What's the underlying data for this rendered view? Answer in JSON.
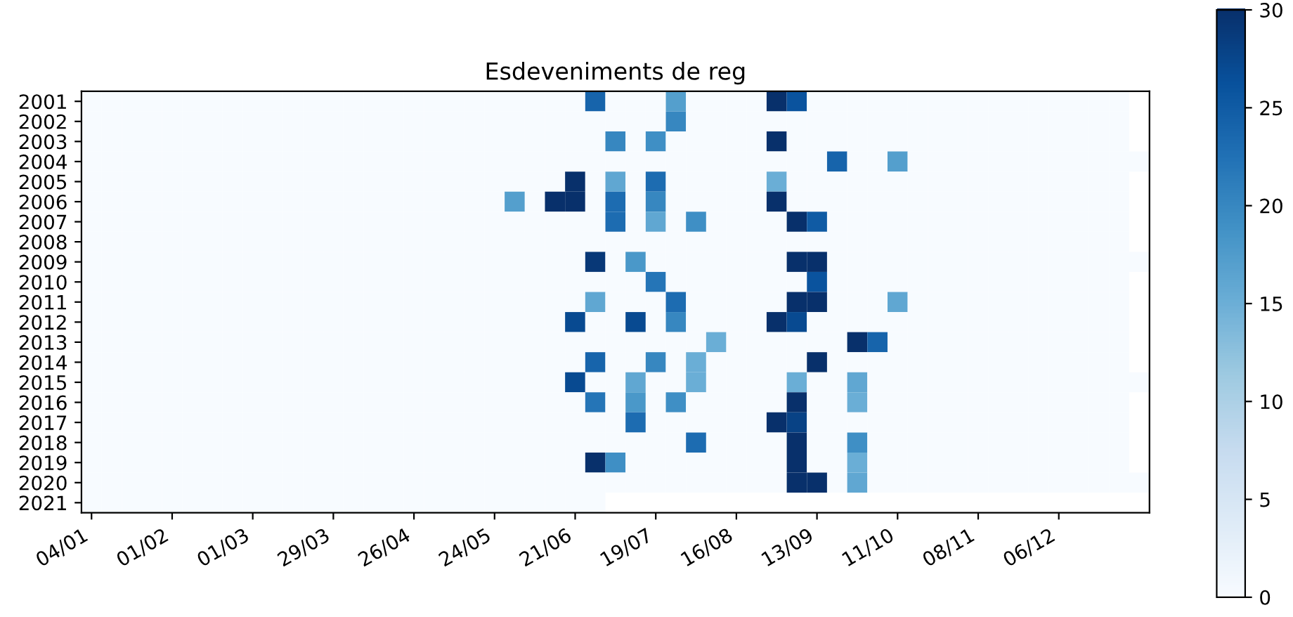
{
  "chart_data": {
    "type": "heatmap",
    "title": "Esdeveniments de reg",
    "categories": [
      "04/01",
      null,
      null,
      null,
      "01/02",
      null,
      null,
      null,
      "01/03",
      null,
      null,
      null,
      "29/03",
      null,
      null,
      null,
      "26/04",
      null,
      null,
      null,
      "24/05",
      null,
      null,
      null,
      "21/06",
      null,
      null,
      null,
      "19/07",
      null,
      null,
      null,
      "16/08",
      null,
      null,
      null,
      "13/09",
      null,
      null,
      null,
      "11/10",
      null,
      null,
      null,
      "08/11",
      null,
      null,
      null,
      "06/12",
      null,
      null,
      null,
      null
    ],
    "y_categories": [
      "2001",
      "2002",
      "2003",
      "2004",
      "2005",
      "2006",
      "2007",
      "2008",
      "2009",
      "2010",
      "2011",
      "2012",
      "2013",
      "2014",
      "2015",
      "2016",
      "2017",
      "2018",
      "2019",
      "2020",
      "2021"
    ],
    "cells": [
      [
        0,
        0,
        0,
        0,
        0,
        0,
        0,
        0,
        0,
        0,
        0,
        0,
        0,
        0,
        0,
        0,
        0,
        0,
        0,
        0,
        0,
        0,
        0,
        0,
        0,
        24,
        0,
        0,
        0,
        17,
        0,
        0,
        0,
        0,
        30,
        26,
        0,
        0,
        0,
        0,
        0,
        0,
        0,
        0,
        0,
        0,
        0,
        0,
        0,
        0,
        0,
        0,
        null
      ],
      [
        0,
        0,
        0,
        0,
        0,
        0,
        0,
        0,
        0,
        0,
        0,
        0,
        0,
        0,
        0,
        0,
        0,
        0,
        0,
        0,
        0,
        0,
        0,
        0,
        0,
        0,
        0,
        0,
        0,
        20,
        0,
        0,
        0,
        0,
        0,
        0,
        0,
        0,
        0,
        0,
        0,
        0,
        0,
        0,
        0,
        0,
        0,
        0,
        0,
        0,
        0,
        0,
        null
      ],
      [
        0,
        0,
        0,
        0,
        0,
        0,
        0,
        0,
        0,
        0,
        0,
        0,
        0,
        0,
        0,
        0,
        0,
        0,
        0,
        0,
        0,
        0,
        0,
        0,
        0,
        0,
        20,
        0,
        19,
        0,
        0,
        0,
        0,
        0,
        30,
        0,
        0,
        0,
        0,
        0,
        0,
        0,
        0,
        0,
        0,
        0,
        0,
        0,
        0,
        0,
        0,
        0,
        null
      ],
      [
        0,
        0,
        0,
        0,
        0,
        0,
        0,
        0,
        0,
        0,
        0,
        0,
        0,
        0,
        0,
        0,
        0,
        0,
        0,
        0,
        0,
        0,
        0,
        0,
        0,
        0,
        0,
        0,
        0,
        0,
        0,
        0,
        0,
        0,
        0,
        0,
        0,
        24,
        0,
        0,
        17,
        0,
        0,
        0,
        0,
        0,
        0,
        0,
        0,
        0,
        0,
        0,
        0
      ],
      [
        0,
        0,
        0,
        0,
        0,
        0,
        0,
        0,
        0,
        0,
        0,
        0,
        0,
        0,
        0,
        0,
        0,
        0,
        0,
        0,
        0,
        0,
        0,
        0,
        30,
        0,
        16,
        0,
        23,
        0,
        0,
        0,
        0,
        0,
        15,
        0,
        0,
        0,
        0,
        0,
        0,
        0,
        0,
        0,
        0,
        0,
        0,
        0,
        0,
        0,
        0,
        0,
        null
      ],
      [
        0,
        0,
        0,
        0,
        0,
        0,
        0,
        0,
        0,
        0,
        0,
        0,
        0,
        0,
        0,
        0,
        0,
        0,
        0,
        0,
        0,
        17,
        0,
        30,
        30,
        0,
        23,
        0,
        20,
        0,
        0,
        0,
        0,
        0,
        30,
        0,
        0,
        0,
        0,
        0,
        0,
        0,
        0,
        0,
        0,
        0,
        0,
        0,
        0,
        0,
        0,
        0,
        null
      ],
      [
        0,
        0,
        0,
        0,
        0,
        0,
        0,
        0,
        0,
        0,
        0,
        0,
        0,
        0,
        0,
        0,
        0,
        0,
        0,
        0,
        0,
        0,
        0,
        0,
        0,
        0,
        23,
        0,
        16,
        0,
        19,
        0,
        0,
        0,
        0,
        30,
        25,
        0,
        0,
        0,
        0,
        0,
        0,
        0,
        0,
        0,
        0,
        0,
        0,
        0,
        0,
        0,
        null
      ],
      [
        0,
        0,
        0,
        0,
        0,
        0,
        0,
        0,
        0,
        0,
        0,
        0,
        0,
        0,
        0,
        0,
        0,
        0,
        0,
        0,
        0,
        0,
        0,
        0,
        0,
        0,
        0,
        0,
        0,
        0,
        0,
        0,
        0,
        0,
        0,
        0,
        0,
        0,
        0,
        0,
        0,
        0,
        0,
        0,
        0,
        0,
        0,
        0,
        0,
        0,
        0,
        0,
        null
      ],
      [
        0,
        0,
        0,
        0,
        0,
        0,
        0,
        0,
        0,
        0,
        0,
        0,
        0,
        0,
        0,
        0,
        0,
        0,
        0,
        0,
        0,
        0,
        0,
        0,
        0,
        29,
        0,
        18,
        0,
        0,
        0,
        0,
        0,
        0,
        0,
        30,
        30,
        0,
        0,
        0,
        0,
        0,
        0,
        0,
        0,
        0,
        0,
        0,
        0,
        0,
        0,
        0,
        0
      ],
      [
        0,
        0,
        0,
        0,
        0,
        0,
        0,
        0,
        0,
        0,
        0,
        0,
        0,
        0,
        0,
        0,
        0,
        0,
        0,
        0,
        0,
        0,
        0,
        0,
        0,
        0,
        0,
        0,
        22,
        0,
        0,
        0,
        0,
        0,
        0,
        0,
        26,
        0,
        0,
        0,
        0,
        0,
        0,
        0,
        0,
        0,
        0,
        0,
        0,
        0,
        0,
        0,
        null
      ],
      [
        0,
        0,
        0,
        0,
        0,
        0,
        0,
        0,
        0,
        0,
        0,
        0,
        0,
        0,
        0,
        0,
        0,
        0,
        0,
        0,
        0,
        0,
        0,
        0,
        0,
        16,
        0,
        0,
        0,
        23,
        0,
        0,
        0,
        0,
        0,
        30,
        30,
        0,
        0,
        0,
        16,
        0,
        0,
        0,
        0,
        0,
        0,
        0,
        0,
        0,
        0,
        0,
        null
      ],
      [
        0,
        0,
        0,
        0,
        0,
        0,
        0,
        0,
        0,
        0,
        0,
        0,
        0,
        0,
        0,
        0,
        0,
        0,
        0,
        0,
        0,
        0,
        0,
        0,
        27,
        0,
        0,
        27,
        0,
        20,
        0,
        0,
        0,
        0,
        30,
        27,
        0,
        0,
        0,
        0,
        0,
        0,
        0,
        0,
        0,
        0,
        0,
        0,
        0,
        0,
        0,
        0,
        null
      ],
      [
        0,
        0,
        0,
        0,
        0,
        0,
        0,
        0,
        0,
        0,
        0,
        0,
        0,
        0,
        0,
        0,
        0,
        0,
        0,
        0,
        0,
        0,
        0,
        0,
        0,
        0,
        0,
        0,
        0,
        0,
        0,
        15,
        0,
        0,
        0,
        0,
        0,
        0,
        30,
        24,
        0,
        0,
        0,
        0,
        0,
        0,
        0,
        0,
        0,
        0,
        0,
        0,
        null
      ],
      [
        0,
        0,
        0,
        0,
        0,
        0,
        0,
        0,
        0,
        0,
        0,
        0,
        0,
        0,
        0,
        0,
        0,
        0,
        0,
        0,
        0,
        0,
        0,
        0,
        0,
        24,
        0,
        0,
        20,
        0,
        15,
        0,
        0,
        0,
        0,
        0,
        30,
        0,
        0,
        0,
        0,
        0,
        0,
        0,
        0,
        0,
        0,
        0,
        0,
        0,
        0,
        0,
        null
      ],
      [
        0,
        0,
        0,
        0,
        0,
        0,
        0,
        0,
        0,
        0,
        0,
        0,
        0,
        0,
        0,
        0,
        0,
        0,
        0,
        0,
        0,
        0,
        0,
        0,
        27,
        0,
        0,
        16,
        0,
        0,
        15,
        0,
        0,
        0,
        0,
        15,
        0,
        0,
        16,
        0,
        0,
        0,
        0,
        0,
        0,
        0,
        0,
        0,
        0,
        0,
        0,
        0,
        0
      ],
      [
        0,
        0,
        0,
        0,
        0,
        0,
        0,
        0,
        0,
        0,
        0,
        0,
        0,
        0,
        0,
        0,
        0,
        0,
        0,
        0,
        0,
        0,
        0,
        0,
        0,
        22,
        0,
        18,
        0,
        19,
        0,
        0,
        0,
        0,
        0,
        30,
        0,
        0,
        15,
        0,
        0,
        0,
        0,
        0,
        0,
        0,
        0,
        0,
        0,
        0,
        0,
        0,
        null
      ],
      [
        0,
        0,
        0,
        0,
        0,
        0,
        0,
        0,
        0,
        0,
        0,
        0,
        0,
        0,
        0,
        0,
        0,
        0,
        0,
        0,
        0,
        0,
        0,
        0,
        0,
        0,
        0,
        23,
        0,
        0,
        0,
        0,
        0,
        0,
        30,
        28,
        0,
        0,
        0,
        0,
        0,
        0,
        0,
        0,
        0,
        0,
        0,
        0,
        0,
        0,
        0,
        0,
        null
      ],
      [
        0,
        0,
        0,
        0,
        0,
        0,
        0,
        0,
        0,
        0,
        0,
        0,
        0,
        0,
        0,
        0,
        0,
        0,
        0,
        0,
        0,
        0,
        0,
        0,
        0,
        0,
        0,
        0,
        0,
        0,
        23,
        0,
        0,
        0,
        0,
        30,
        0,
        0,
        19,
        0,
        0,
        0,
        0,
        0,
        0,
        0,
        0,
        0,
        0,
        0,
        0,
        0,
        null
      ],
      [
        0,
        0,
        0,
        0,
        0,
        0,
        0,
        0,
        0,
        0,
        0,
        0,
        0,
        0,
        0,
        0,
        0,
        0,
        0,
        0,
        0,
        0,
        0,
        0,
        0,
        30,
        19,
        0,
        0,
        0,
        0,
        0,
        0,
        0,
        0,
        30,
        0,
        0,
        15,
        0,
        0,
        0,
        0,
        0,
        0,
        0,
        0,
        0,
        0,
        0,
        0,
        0,
        null
      ],
      [
        0,
        0,
        0,
        0,
        0,
        0,
        0,
        0,
        0,
        0,
        0,
        0,
        0,
        0,
        0,
        0,
        0,
        0,
        0,
        0,
        0,
        0,
        0,
        0,
        0,
        0,
        0,
        0,
        0,
        0,
        0,
        0,
        0,
        0,
        0,
        30,
        30,
        0,
        16,
        0,
        0,
        0,
        0,
        0,
        0,
        0,
        0,
        0,
        0,
        0,
        0,
        0,
        0
      ],
      [
        0,
        0,
        0,
        0,
        0,
        0,
        0,
        0,
        0,
        0,
        0,
        0,
        0,
        0,
        0,
        0,
        0,
        0,
        0,
        0,
        0,
        0,
        0,
        0,
        0,
        0,
        null,
        null,
        null,
        null,
        null,
        null,
        null,
        null,
        null,
        null,
        null,
        null,
        null,
        null,
        null,
        null,
        null,
        null,
        null,
        null,
        null,
        null,
        null,
        null,
        null,
        null,
        null
      ]
    ],
    "clim": [
      0,
      30
    ],
    "cticks": [
      0,
      5,
      10,
      15,
      20,
      25,
      30
    ]
  }
}
